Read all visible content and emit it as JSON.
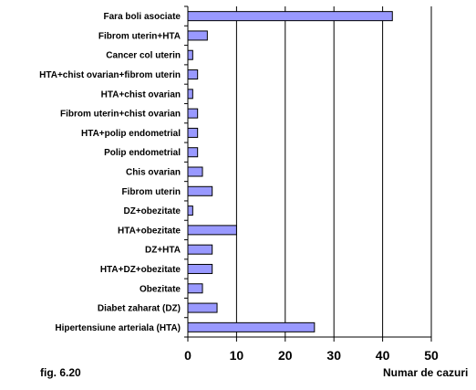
{
  "chart_data": {
    "type": "bar",
    "orientation": "horizontal",
    "categories": [
      "Fara boli asociate",
      "Fibrom uterin+HTA",
      "Cancer col uterin",
      "HTA+chist ovarian+fibrom uterin",
      "HTA+chist ovarian",
      "Fibrom uterin+chist ovarian",
      "HTA+polip endometrial",
      "Polip endometrial",
      "Chis ovarian",
      "Fibrom uterin",
      "DZ+obezitate",
      "HTA+obezitate",
      "DZ+HTA",
      "HTA+DZ+obezitate",
      "Obezitate",
      "Diabet zaharat (DZ)",
      "Hipertensiune arteriala (HTA)"
    ],
    "values": [
      42,
      4,
      1,
      2,
      1,
      2,
      2,
      2,
      3,
      5,
      1,
      10,
      5,
      5,
      3,
      6,
      26
    ],
    "xlabel": "Numar de cazuri",
    "xlim": [
      0,
      50
    ],
    "xticks": [
      "0",
      "10",
      "20",
      "30",
      "40",
      "50"
    ],
    "grid": "vertical",
    "legend": "none",
    "bar_color": "#9999ff",
    "bar_edge_color": "#000000"
  },
  "figure_label": "fig. 6.20"
}
